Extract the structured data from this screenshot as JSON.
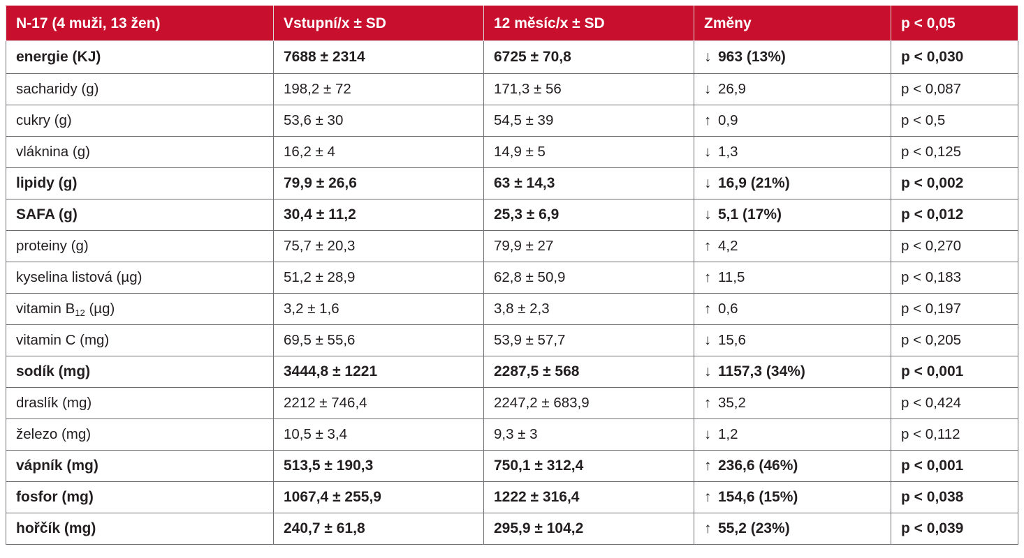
{
  "table": {
    "headers": [
      "N-17 (4 muži, 13 žen)",
      "Vstupní/x ± SD",
      "12 měsíc/x ± SD",
      "Změny",
      "p < 0,05"
    ],
    "rows": [
      {
        "label": "energie (KJ)",
        "label_sub": "",
        "label_suffix": "",
        "baseline": "7688 ± 2314",
        "month12": "6725 ± 70,8",
        "direction": "↓",
        "change": "963 (13%)",
        "p": "p < 0,030",
        "bold": true
      },
      {
        "label": "sacharidy (g)",
        "label_sub": "",
        "label_suffix": "",
        "baseline": "198,2 ± 72",
        "month12": "171,3 ± 56",
        "direction": "↓",
        "change": "26,9",
        "p": "p < 0,087",
        "bold": false
      },
      {
        "label": "cukry (g)",
        "label_sub": "",
        "label_suffix": "",
        "baseline": "53,6 ± 30",
        "month12": "54,5 ± 39",
        "direction": "↑",
        "change": "0,9",
        "p": "p < 0,5",
        "bold": false
      },
      {
        "label": "vláknina (g)",
        "label_sub": "",
        "label_suffix": "",
        "baseline": "16,2 ± 4",
        "month12": "14,9 ± 5",
        "direction": "↓",
        "change": "1,3",
        "p": "p < 0,125",
        "bold": false
      },
      {
        "label": "lipidy (g)",
        "label_sub": "",
        "label_suffix": "",
        "baseline": "79,9 ± 26,6",
        "month12": "63 ± 14,3",
        "direction": "↓",
        "change": "16,9 (21%)",
        "p": "p < 0,002",
        "bold": true
      },
      {
        "label": "SAFA (g)",
        "label_sub": "",
        "label_suffix": "",
        "baseline": "30,4 ± 11,2",
        "month12": "25,3 ± 6,9",
        "direction": "↓",
        "change": "5,1 (17%)",
        "p": "p < 0,012",
        "bold": true
      },
      {
        "label": "proteiny (g)",
        "label_sub": "",
        "label_suffix": "",
        "baseline": "75,7 ± 20,3",
        "month12": "79,9 ± 27",
        "direction": "↑",
        "change": "4,2",
        "p": "p < 0,270",
        "bold": false
      },
      {
        "label": "kyselina listová (µg)",
        "label_sub": "",
        "label_suffix": "",
        "baseline": "51,2 ± 28,9",
        "month12": "62,8 ± 50,9",
        "direction": "↑",
        "change": "11,5",
        "p": "p < 0,183",
        "bold": false
      },
      {
        "label": "vitamin B",
        "label_sub": "12",
        "label_suffix": " (µg)",
        "baseline": "3,2 ± 1,6",
        "month12": "3,8 ± 2,3",
        "direction": "↑",
        "change": "0,6",
        "p": "p < 0,197",
        "bold": false
      },
      {
        "label": "vitamin C (mg)",
        "label_sub": "",
        "label_suffix": "",
        "baseline": "69,5 ± 55,6",
        "month12": "53,9 ± 57,7",
        "direction": "↓",
        "change": "15,6",
        "p": "p < 0,205",
        "bold": false
      },
      {
        "label": "sodík (mg)",
        "label_sub": "",
        "label_suffix": "",
        "baseline": "3444,8 ± 1221",
        "month12": "2287,5 ± 568",
        "direction": "↓",
        "change": "1157,3 (34%)",
        "p": "p < 0,001",
        "bold": true
      },
      {
        "label": "draslík (mg)",
        "label_sub": "",
        "label_suffix": "",
        "baseline": "2212 ± 746,4",
        "month12": "2247,2 ± 683,9",
        "direction": "↑",
        "change": "35,2",
        "p": "p < 0,424",
        "bold": false
      },
      {
        "label": "železo (mg)",
        "label_sub": "",
        "label_suffix": "",
        "baseline": "10,5 ± 3,4",
        "month12": "9,3 ± 3",
        "direction": "↓",
        "change": "1,2",
        "p": "p < 0,112",
        "bold": false
      },
      {
        "label": "vápník (mg)",
        "label_sub": "",
        "label_suffix": "",
        "baseline": "513,5 ± 190,3",
        "month12": "750,1 ± 312,4",
        "direction": "↑",
        "change": "236,6 (46%)",
        "p": "p < 0,001",
        "bold": true
      },
      {
        "label": "fosfor (mg)",
        "label_sub": "",
        "label_suffix": "",
        "baseline": "1067,4 ± 255,9",
        "month12": "1222 ± 316,4",
        "direction": "↑",
        "change": "154,6 (15%)",
        "p": "p < 0,038",
        "bold": true
      },
      {
        "label": "hořčík (mg)",
        "label_sub": "",
        "label_suffix": "",
        "baseline": "240,7 ± 61,8",
        "month12": "295,9 ± 104,2",
        "direction": "↑",
        "change": "55,2 (23%)",
        "p": "p < 0,039",
        "bold": true
      }
    ]
  },
  "colors": {
    "header_bg": "#c8102e",
    "header_text": "#ffffff",
    "border": "#6d6e71",
    "text": "#231f20"
  },
  "icons": {
    "up": "arrow-up-icon",
    "down": "arrow-down-icon"
  }
}
